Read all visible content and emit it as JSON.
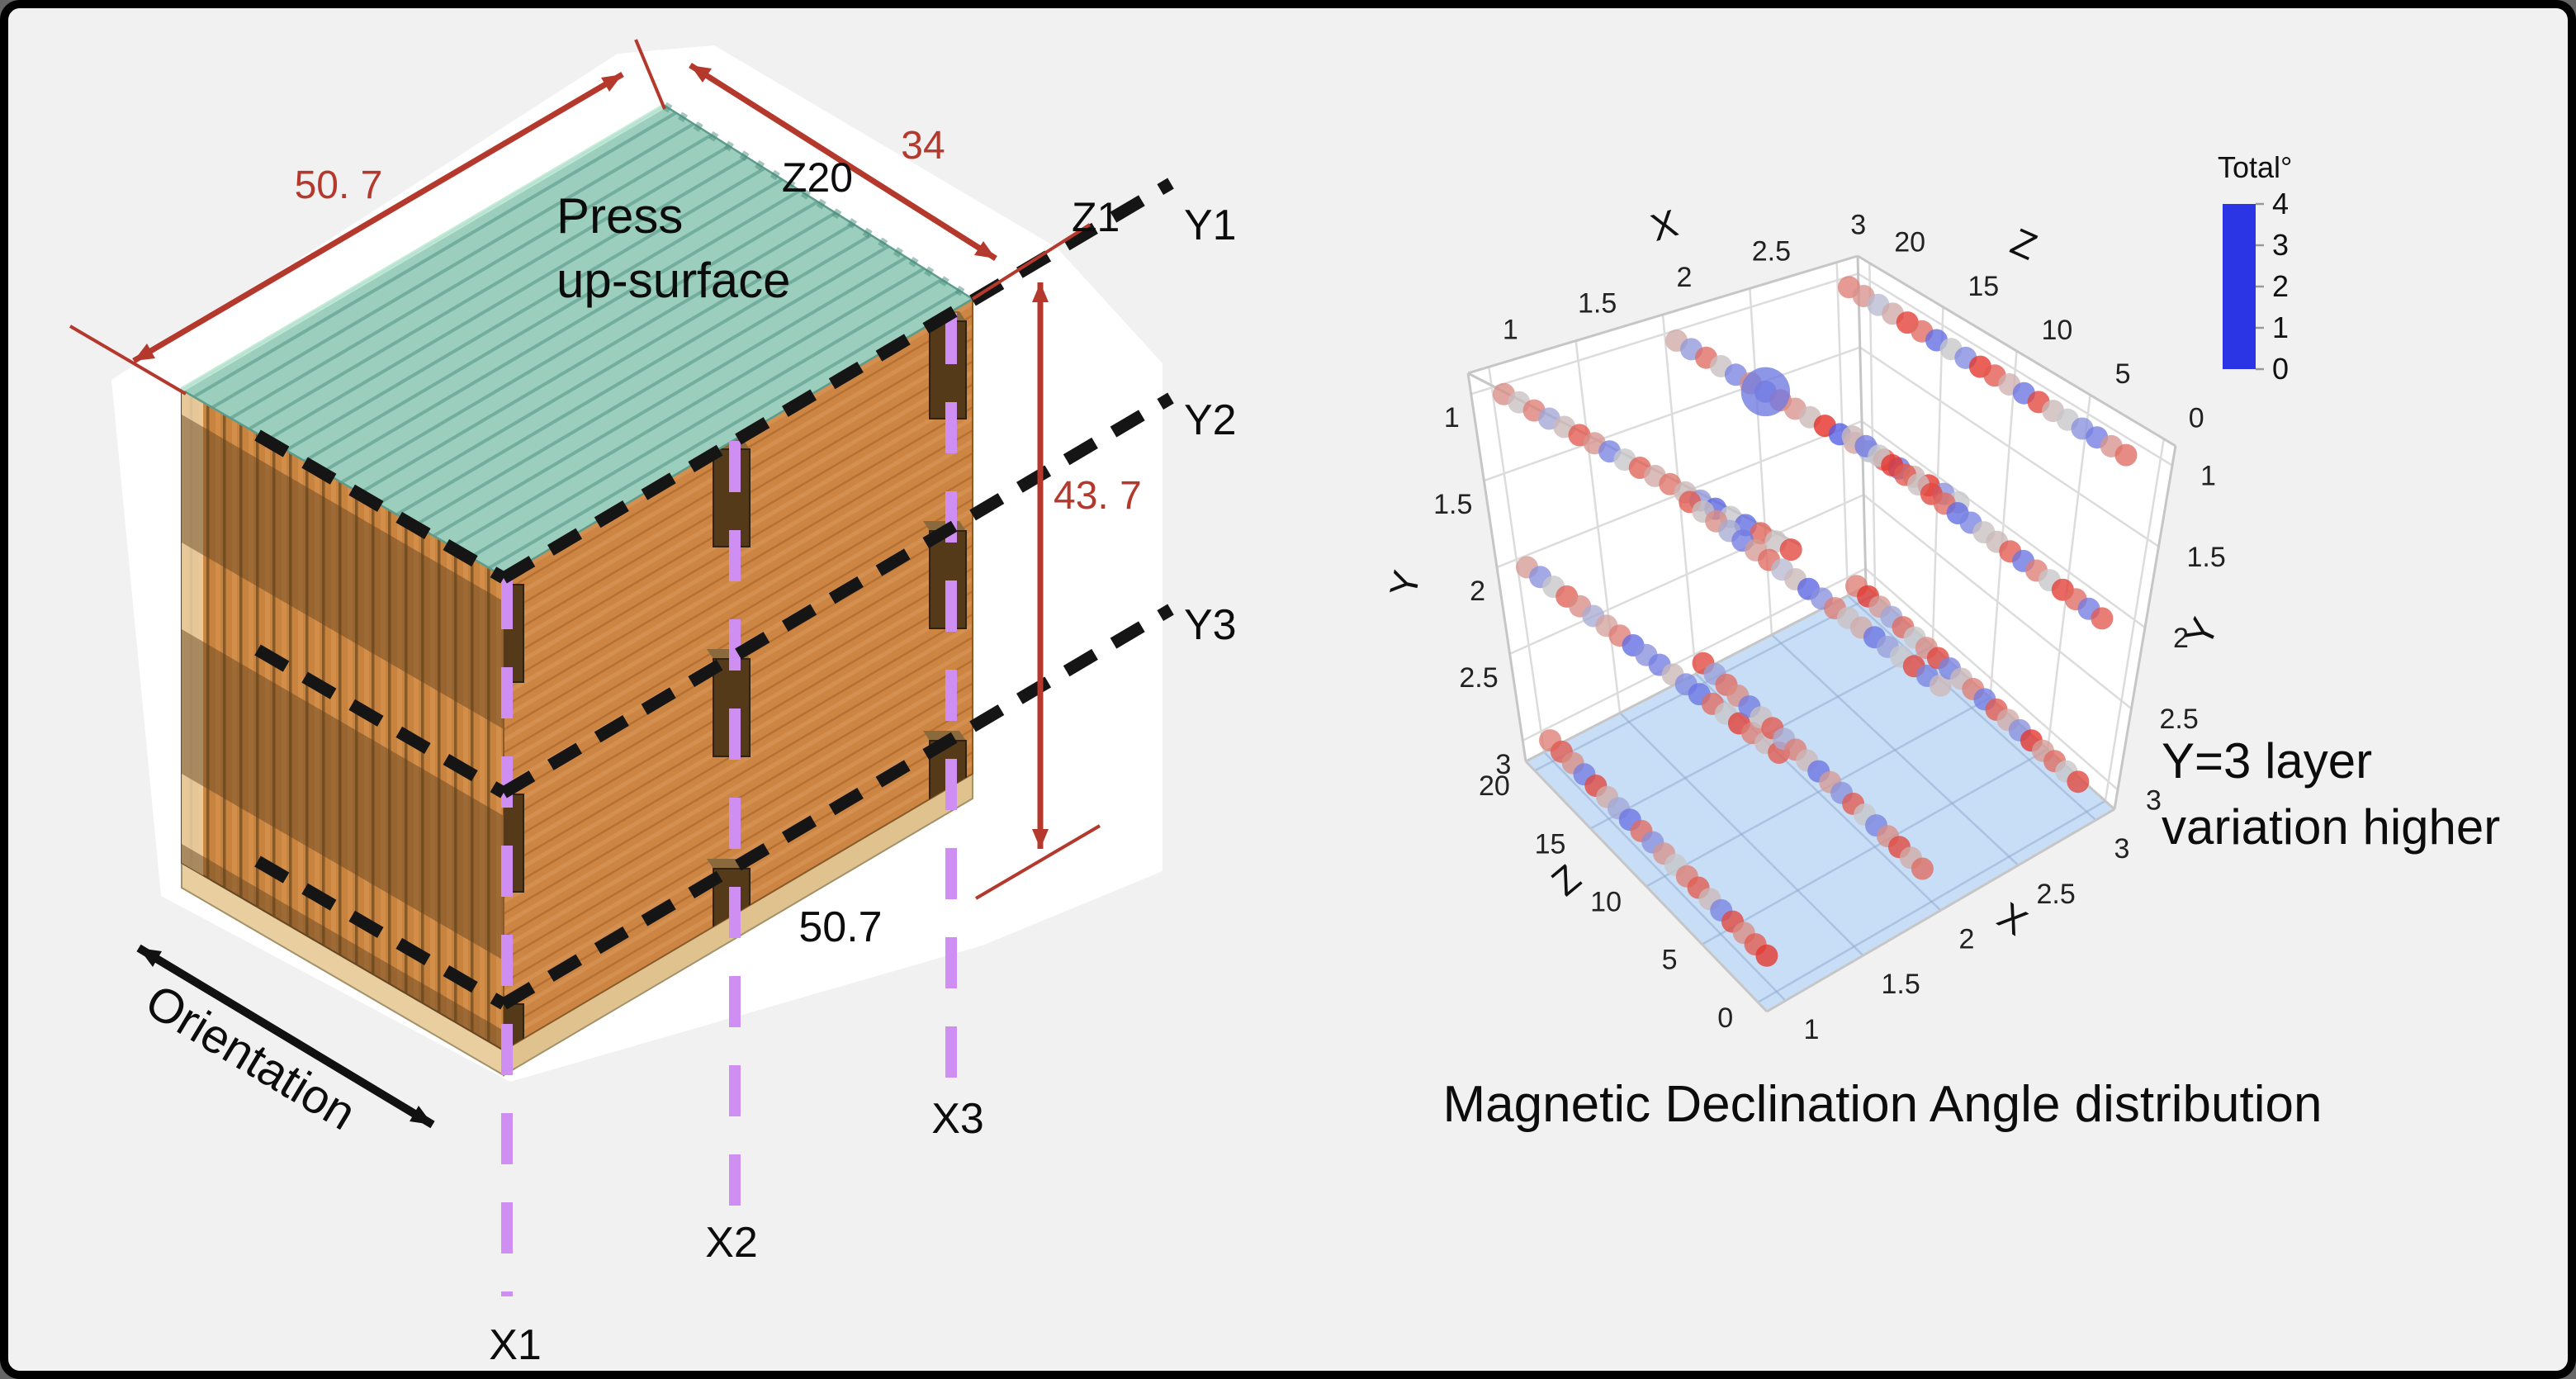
{
  "canvas": {
    "background": "#f1f1f1",
    "frame": "#000000"
  },
  "block_diagram": {
    "labels": {
      "dim_top_left": "50. 7",
      "dim_top_right": "34",
      "dim_right": "43. 7",
      "dim_bottom": "50.7",
      "z_top": "Z20",
      "z_corner": "Z1",
      "y_line_1": "Y1",
      "y_line_2": "Y2",
      "y_line_3": "Y3",
      "x_line_1": "X1",
      "x_line_2": "X2",
      "x_line_3": "X3",
      "press_line1": "Press",
      "press_line2": "up-surface",
      "orientation": "Orientation"
    },
    "colors": {
      "dimension_red": "#b4392c",
      "dash_black": "#151515",
      "dash_purple": "#cf8ef2",
      "top_face_teal": "#93cab6",
      "left_face_orange": "#c8833f",
      "right_face_orange": "#cd8544",
      "slat_dark_brown": "#5d3d1d",
      "base_tan": "#e9cf9f"
    }
  },
  "chart_data": {
    "type": "scatter",
    "projection": "3d",
    "title": "Magnetic Declination Angle distribution",
    "annotation_lines": [
      "Y=3 layer",
      "variation higher"
    ],
    "highlight_plane": "Y=3",
    "axes": {
      "x": {
        "label": "X",
        "ticks": [
          1,
          1.5,
          2,
          2.5,
          3
        ],
        "range": [
          1,
          3
        ]
      },
      "y": {
        "label": "Y",
        "ticks": [
          1,
          1.5,
          2,
          2.5,
          3
        ],
        "range": [
          1,
          3
        ]
      },
      "z": {
        "label": "Z",
        "ticks": [
          20,
          15,
          10,
          5,
          0
        ],
        "range": [
          0,
          20
        ]
      }
    },
    "colorbar": {
      "title": "Total°",
      "ticks": [
        4,
        3,
        2,
        1,
        0
      ],
      "range": [
        0,
        4
      ],
      "stops": [
        "#2b35e5",
        "#7a84e2",
        "#c7c7ca",
        "#de7e74",
        "#e5231a"
      ]
    },
    "series": [
      {
        "x": 1,
        "y": 1,
        "z_start": 1,
        "z_end": 20,
        "totals": [
          3.6,
          2.1,
          3.3,
          0.7,
          2.0,
          0.6,
          1.3,
          2.2,
          3.1,
          2.4,
          3.3,
          2.0,
          1.0,
          2.7,
          3.4,
          2.2,
          1.5,
          3.0,
          2.1,
          2.8
        ]
      },
      {
        "x": 2,
        "y": 1,
        "z_start": 1,
        "z_end": 20,
        "totals": [
          2.0,
          1.2,
          3.8,
          2.3,
          0.8,
          3.4,
          1.8,
          2.5,
          0.5,
          3.9,
          2.2,
          2.7,
          3.1,
          0.9,
          2.8,
          1.0,
          2.1,
          3.2,
          1.3,
          2.4
        ]
      },
      {
        "x": 3,
        "y": 1,
        "z_start": 1,
        "z_end": 20,
        "totals": [
          3.2,
          2.7,
          0.9,
          1.2,
          2.0,
          2.2,
          3.6,
          0.8,
          2.3,
          3.4,
          3.8,
          1.1,
          2.0,
          0.7,
          3.2,
          3.7,
          2.4,
          1.8,
          2.7,
          3.0
        ]
      },
      {
        "x": 1,
        "y": 2,
        "z_start": 1,
        "z_end": 20,
        "totals": [
          3.4,
          2.2,
          3.0,
          3.7,
          2.0,
          3.2,
          0.8,
          1.1,
          2.2,
          0.9,
          1.2,
          0.7,
          3.0,
          2.5,
          1.6,
          2.8,
          3.3,
          2.0,
          1.2,
          2.6
        ]
      },
      {
        "x": 2,
        "y": 2,
        "z_start": 1,
        "z_end": 20,
        "totals": [
          2.2,
          1.0,
          3.6,
          2.0,
          1.4,
          0.8,
          2.4,
          2.1,
          3.0,
          1.2,
          0.6,
          2.2,
          1.8,
          3.2,
          2.6,
          0.9,
          1.6,
          2.8,
          2.1,
          3.4
        ]
      },
      {
        "x": 3,
        "y": 2,
        "z_start": 1,
        "z_end": 20,
        "totals": [
          3.4,
          0.9,
          3.2,
          3.7,
          2.0,
          3.0,
          0.8,
          3.4,
          2.2,
          2.1,
          1.0,
          0.7,
          3.2,
          3.6,
          2.1,
          3.4,
          3.8,
          2.0,
          0.9,
          2.2
        ]
      },
      {
        "x": 1,
        "y": 3,
        "z_start": 1,
        "z_end": 20,
        "totals": [
          3.8,
          3.4,
          2.8,
          3.6,
          1.0,
          2.2,
          3.4,
          3.0,
          2.0,
          2.7,
          1.2,
          3.2,
          0.8,
          1.5,
          2.4,
          3.6,
          0.9,
          2.8,
          3.4,
          3.0
        ]
      },
      {
        "x": 2,
        "y": 3,
        "z_start": 1,
        "z_end": 20,
        "totals": [
          3.2,
          2.4,
          3.6,
          2.8,
          1.0,
          2.0,
          3.4,
          1.2,
          2.6,
          0.8,
          2.2,
          3.0,
          1.6,
          3.4,
          2.1,
          0.9,
          2.8,
          3.2,
          1.4,
          3.6
        ]
      },
      {
        "x": 3,
        "y": 3,
        "z_start": 1,
        "z_end": 20,
        "totals": [
          3.6,
          2.0,
          3.2,
          2.6,
          3.8,
          1.2,
          2.4,
          3.4,
          0.9,
          3.0,
          2.2,
          1.0,
          3.6,
          2.8,
          2.0,
          3.2,
          1.5,
          2.6,
          3.8,
          3.0
        ]
      }
    ],
    "outlier": {
      "x": 2,
      "y": 1,
      "z": 14,
      "total": 0.9,
      "size_scale": 2.2
    }
  }
}
